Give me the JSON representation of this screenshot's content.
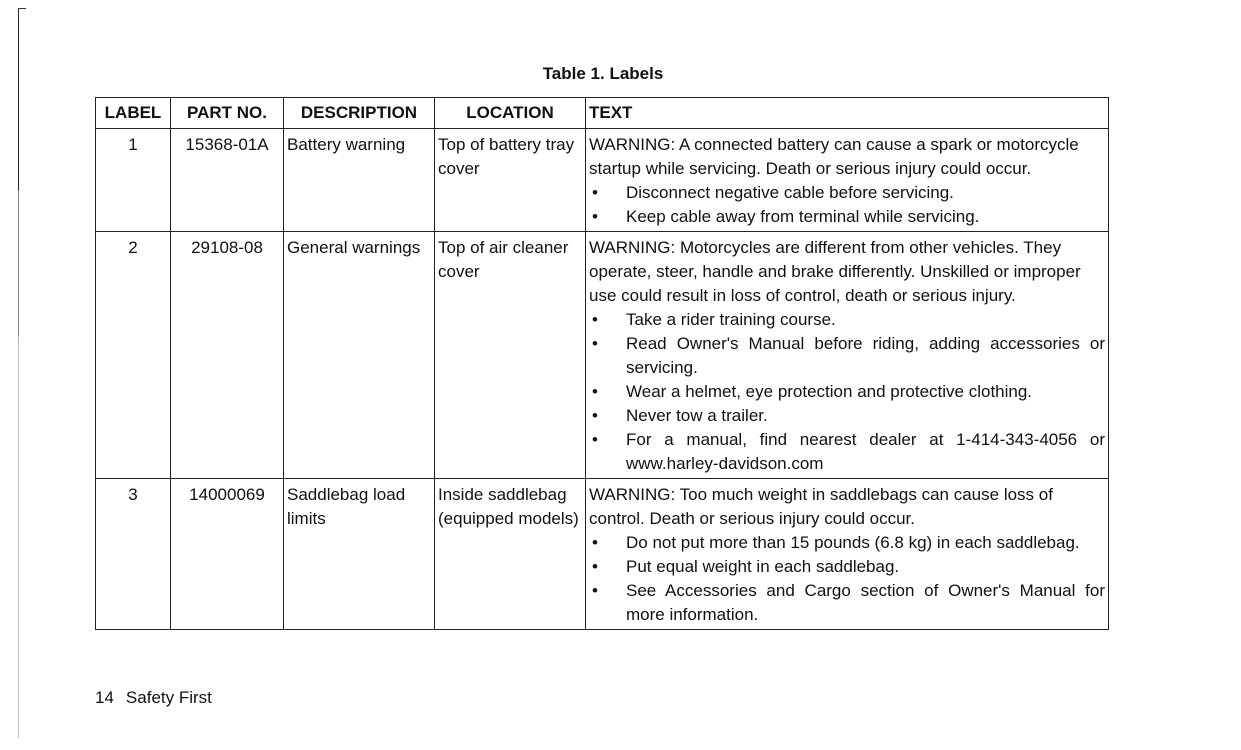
{
  "table_title": "Table 1. Labels",
  "columns": [
    "LABEL",
    "PART NO.",
    "DESCRIPTION",
    "LOCATION",
    "TEXT"
  ],
  "rows": [
    {
      "label": "1",
      "part_no": "15368-01A",
      "description": "Battery warning",
      "location": "Top of battery tray cover",
      "text": "WARNING: A connected battery can cause a spark or motorcycle startup while servicing. Death or serious injury could occur.",
      "bullets": [
        "Disconnect negative cable before servicing.",
        "Keep cable away from terminal while servicing."
      ]
    },
    {
      "label": "2",
      "part_no": "29108-08",
      "description": "General warnings",
      "location": "Top of air cleaner cover",
      "text": "WARNING: Motorcycles are different from other vehicles. They operate, steer, handle and brake differently. Unskilled or improper use could result in loss of control, death or serious injury.",
      "bullets": [
        "Take a rider training course.",
        "Read Owner's Manual before riding, adding accessories or servicing.",
        "Wear a helmet, eye protection and protective clothing.",
        "Never tow a trailer.",
        "For a manual, find nearest dealer at 1-414-343-4056 or www.harley-davidson.com"
      ]
    },
    {
      "label": "3",
      "part_no": "14000069",
      "description": "Saddlebag load limits",
      "location": "Inside saddlebag (equipped models)",
      "text": "WARNING: Too much weight in saddlebags can cause loss of control. Death or serious injury could occur.",
      "bullets": [
        "Do not put more than 15 pounds (6.8 kg) in each saddlebag.",
        "Put equal weight in each saddlebag.",
        "See Accessories and Cargo section of Owner's Manual for more information."
      ]
    }
  ],
  "footer": {
    "page_number": "14",
    "section": "Safety First"
  }
}
